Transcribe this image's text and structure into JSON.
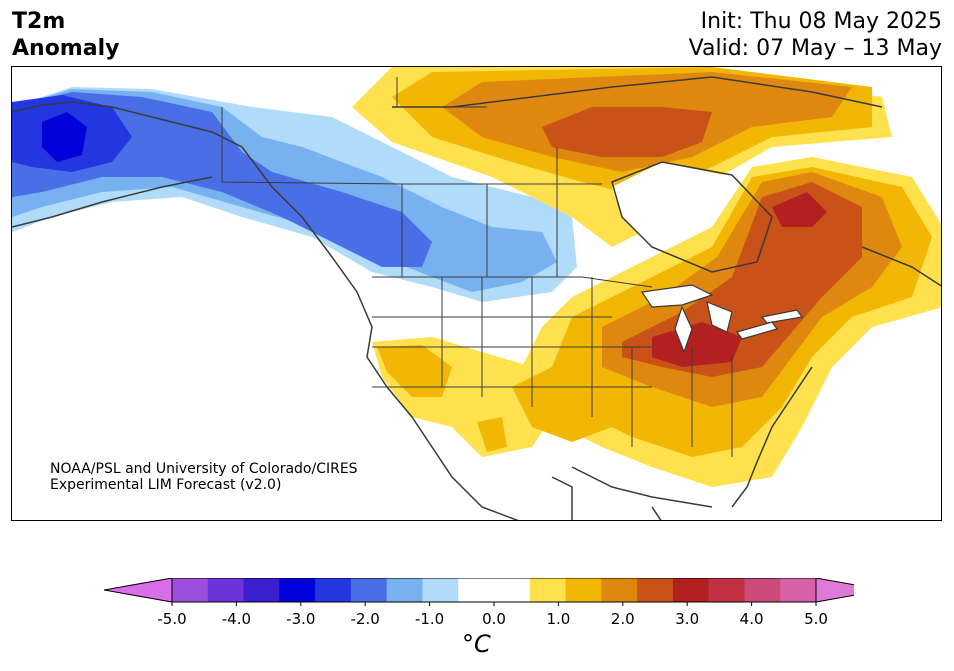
{
  "header": {
    "title_line1": "T2m",
    "title_line2": "Anomaly",
    "init": "Init: Thu 08 May 2025",
    "valid": "Valid: 07 May – 13 May"
  },
  "credit": {
    "line1": "NOAA/PSL and University of Colorado/CIRES",
    "line2": "Experimental LIM Forecast (v2.0)"
  },
  "colorbar": {
    "unit": "°C",
    "tick_labels": [
      "-5.0",
      "-4.0",
      "-3.0",
      "-2.0",
      "-1.0",
      "0.0",
      "1.0",
      "2.0",
      "3.0",
      "4.0",
      "5.0"
    ],
    "colors": [
      "#d86ee8",
      "#9b4fdc",
      "#6b35d9",
      "#3a1fd0",
      "#0000d8",
      "#2336df",
      "#4a6ee6",
      "#78b1f0",
      "#b0dcfa",
      "#ffffff",
      "#ffffff",
      "#ffe14d",
      "#f2b705",
      "#df880f",
      "#c95218",
      "#b32020",
      "#c23042",
      "#cd4b78",
      "#d760a6",
      "#e07ad8"
    ]
  },
  "map": {
    "region": "North America",
    "variable": "2m temperature anomaly",
    "colors": {
      "land_neutral": "#ffffff",
      "ocean": "#ffffff",
      "border": "#3a3a3a"
    }
  }
}
